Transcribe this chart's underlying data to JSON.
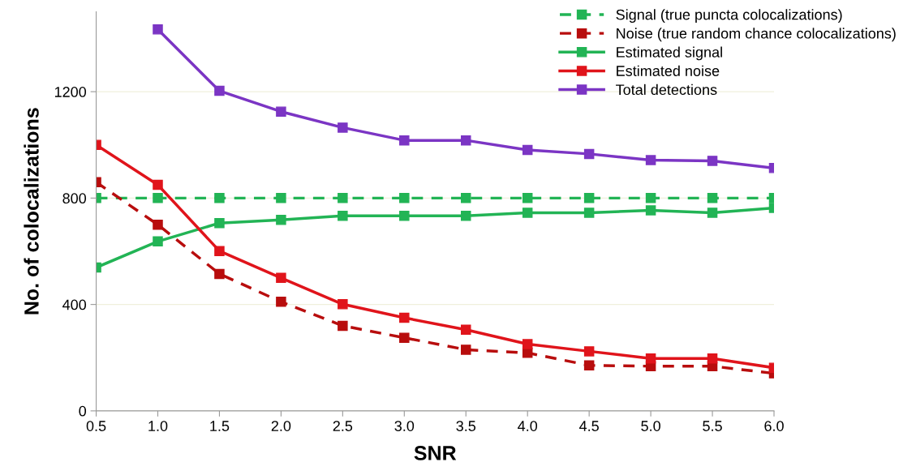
{
  "chart_data": {
    "type": "line",
    "xlabel": "SNR",
    "ylabel": "No. of colocalizations",
    "x": [
      0.5,
      1.0,
      1.5,
      2.0,
      2.5,
      3.0,
      3.5,
      4.0,
      4.5,
      5.0,
      5.5,
      6.0
    ],
    "series": [
      {
        "name": "Signal (true puncta colocalizations)",
        "color": "#22b455",
        "line_style": "dashed",
        "values": [
          800,
          800,
          800,
          800,
          800,
          800,
          800,
          800,
          800,
          800,
          800,
          800
        ]
      },
      {
        "name": "Noise (true random chance colocalizations)",
        "color": "#b80d0d",
        "line_style": "dashed",
        "values": [
          860,
          700,
          515,
          410,
          320,
          275,
          230,
          218,
          171,
          168,
          168,
          141
        ]
      },
      {
        "name": "Estimated signal",
        "color": "#22b455",
        "line_style": "solid",
        "values": [
          539,
          637,
          706,
          718,
          733,
          733,
          733,
          745,
          745,
          754,
          745,
          763
        ]
      },
      {
        "name": "Estimated noise",
        "color": "#e0141b",
        "line_style": "solid",
        "values": [
          1000,
          850,
          601,
          500,
          401,
          350,
          305,
          251,
          224,
          197,
          197,
          162
        ]
      },
      {
        "name": "Total detections",
        "color": "#7b35c4",
        "line_style": "solid",
        "values": [
          null,
          1434,
          1203,
          1125,
          1065,
          1017,
          1017,
          981,
          966,
          943,
          940,
          913
        ]
      }
    ],
    "marker": "square",
    "grid": "y",
    "legend": "top right",
    "xlim": [
      0.5,
      6.0
    ],
    "xticks": [
      {
        "value": 0.5,
        "label": "0.5"
      },
      {
        "value": 1.0,
        "label": "1.0"
      },
      {
        "value": 1.5,
        "label": "1.5"
      },
      {
        "value": 2.0,
        "label": "2.0"
      },
      {
        "value": 2.5,
        "label": "2.5"
      },
      {
        "value": 3.0,
        "label": "3.0"
      },
      {
        "value": 3.5,
        "label": "3.5"
      },
      {
        "value": 4.0,
        "label": "4.0"
      },
      {
        "value": 4.5,
        "label": "4.5"
      },
      {
        "value": 5.0,
        "label": "5.0"
      },
      {
        "value": 5.5,
        "label": "5.5"
      },
      {
        "value": 6.0,
        "label": "6.0"
      }
    ],
    "ylim": [
      0,
      1500
    ],
    "yticks": [
      0,
      400,
      800,
      1200
    ]
  }
}
